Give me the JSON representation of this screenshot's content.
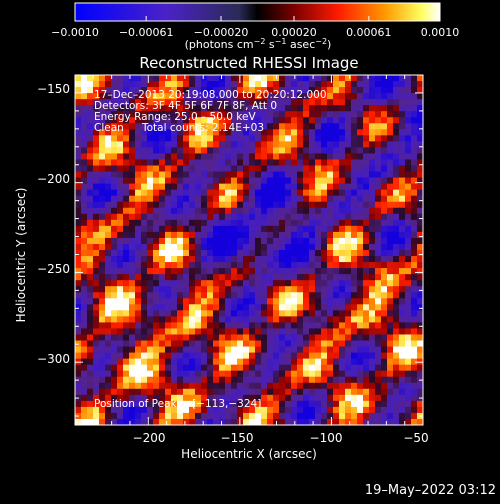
{
  "colorbar": {
    "tick_labels": [
      "−0.0010",
      "−0.00061",
      "−0.00020",
      "0.00020",
      "0.00061",
      "0.0010"
    ],
    "units_prefix": "(photons cm",
    "units_exp1": "−2",
    "units_mid": " s",
    "units_exp2": "−1",
    "units_mid2": " asec",
    "units_exp3": "−2",
    "units_suffix": ")"
  },
  "title": "Reconstructed RHESSI Image",
  "info": {
    "line1": "17–Dec–2013 20:19:08.000 to 20:20:12.000",
    "line2": "Detectors: 3F 4F 5F 6F 7F 8F, Att 0",
    "line3": "Energy Range: 25.0 – 50.0 keV",
    "line4_a": "Clean",
    "line4_b": "Total counts: 2.14E+03"
  },
  "peak": "Position of Peak = [−113,−324]",
  "axes": {
    "xlabel": "Heliocentric X (arcsec)",
    "ylabel": "Heliocentric Y (arcsec)",
    "x_ticks": [
      "−200",
      "−150",
      "−100",
      "−50"
    ],
    "y_ticks": [
      "−150",
      "−200",
      "−250",
      "−300"
    ]
  },
  "timestamp": "19–May–2022 03:12",
  "chart_data": {
    "type": "heatmap",
    "title": "Reconstructed RHESSI Image",
    "xlabel": "Heliocentric X (arcsec)",
    "ylabel": "Heliocentric Y (arcsec)",
    "xlim": [
      -240,
      -50
    ],
    "ylim": [
      -335,
      -140
    ],
    "colorbar_range": [
      -0.001,
      0.001
    ],
    "peak_position": [
      -113,
      -324
    ]
  }
}
